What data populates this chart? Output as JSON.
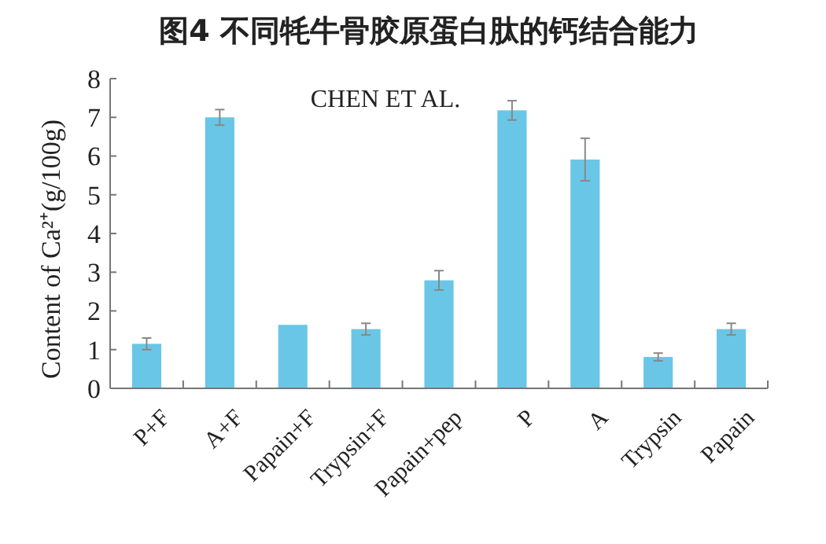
{
  "chart_data": {
    "type": "bar",
    "title": "图4 不同牦牛骨胶原蛋白肽的钙结合能力",
    "ylabel": "Content of Ca²⁺(g/100g)",
    "annotations": [
      "CHEN ET AL."
    ],
    "categories": [
      "P+F",
      "A+F",
      "Papain+F",
      "Trypsin+F",
      "Papain+pep",
      "P",
      "A",
      "Trypsin",
      "Papain"
    ],
    "values": [
      1.15,
      7.0,
      1.64,
      1.53,
      2.79,
      7.18,
      5.91,
      0.81,
      1.53
    ],
    "errors": [
      0.15,
      0.2,
      null,
      0.15,
      0.25,
      0.25,
      0.55,
      0.1,
      0.15
    ],
    "color": "#6ac6e6",
    "ylim": [
      0,
      8
    ],
    "yticks": [
      0,
      1,
      2,
      3,
      4,
      5,
      6,
      7,
      8
    ],
    "grid": false
  }
}
